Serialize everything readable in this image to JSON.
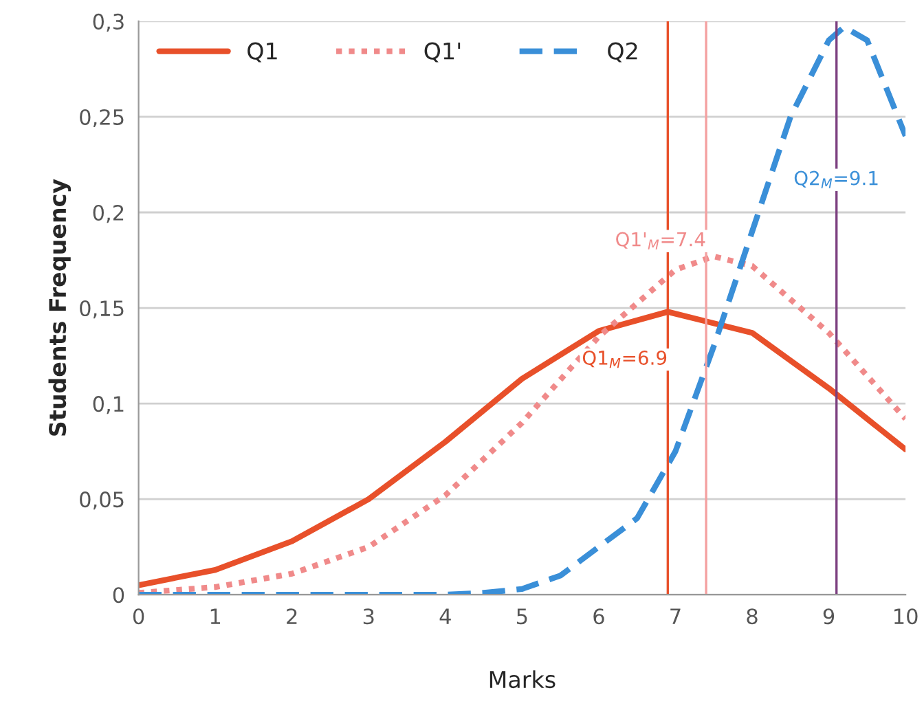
{
  "chart_data": {
    "type": "line",
    "xlabel": "Marks",
    "ylabel": "Students Frequency",
    "xlim": [
      0,
      10
    ],
    "ylim": [
      0,
      0.3
    ],
    "xticks": [
      0,
      1,
      2,
      3,
      4,
      5,
      6,
      7,
      8,
      9,
      10
    ],
    "yticks": [
      {
        "value": 0,
        "label": "0"
      },
      {
        "value": 0.05,
        "label": "0,05"
      },
      {
        "value": 0.1,
        "label": "0,1"
      },
      {
        "value": 0.15,
        "label": "0,15"
      },
      {
        "value": 0.2,
        "label": "0,2"
      },
      {
        "value": 0.25,
        "label": "0,25"
      },
      {
        "value": 0.3,
        "label": "0,3"
      }
    ],
    "grid": "y",
    "legend": "top left",
    "series": [
      {
        "name": "Q1",
        "color": "#e8502a",
        "line_style": "solid",
        "x": [
          0,
          1,
          2,
          3,
          4,
          5,
          6,
          6.9,
          8,
          9,
          10
        ],
        "values": [
          0.005,
          0.013,
          0.028,
          0.05,
          0.08,
          0.113,
          0.138,
          0.148,
          0.137,
          0.108,
          0.076
        ]
      },
      {
        "name": "Q1'",
        "color": "#f08a8a",
        "line_style": "dotted",
        "x": [
          0,
          1,
          2,
          3,
          4,
          5,
          6,
          7,
          7.5,
          8,
          9,
          10
        ],
        "values": [
          0.001,
          0.004,
          0.011,
          0.025,
          0.052,
          0.09,
          0.135,
          0.17,
          0.177,
          0.172,
          0.137,
          0.092
        ]
      },
      {
        "name": "Q2",
        "color": "#3a8fd8",
        "line_style": "dashed",
        "x": [
          0,
          1,
          2,
          3,
          4,
          4.5,
          5,
          5.5,
          6,
          6.5,
          7,
          7.5,
          8,
          8.5,
          9,
          9.2,
          9.5,
          10
        ],
        "values": [
          0,
          0,
          0,
          0,
          0,
          0.001,
          0.003,
          0.01,
          0.025,
          0.04,
          0.075,
          0.13,
          0.19,
          0.25,
          0.29,
          0.297,
          0.29,
          0.24
        ]
      }
    ],
    "ref_lines": [
      {
        "axis": "x",
        "value": 6.9,
        "color": "#e8502a"
      },
      {
        "axis": "x",
        "value": 7.4,
        "color": "#f4a0a0"
      },
      {
        "axis": "x",
        "value": 9.1,
        "color": "#7b3f7f"
      }
    ],
    "annotations": [
      {
        "text": "Q1$_{M}$=6.9",
        "x": 6.9,
        "y": 0.123
      },
      {
        "text": "Q1'$_{M}$=7.4",
        "x": 7.4,
        "y": 0.185
      },
      {
        "text": "Q2$_{M}$=9.1",
        "x": 9.1,
        "y": 0.217
      }
    ]
  }
}
